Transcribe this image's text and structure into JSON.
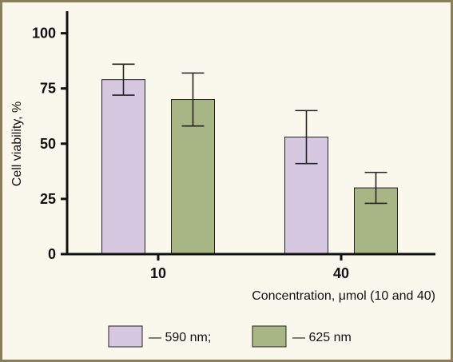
{
  "chart_data": {
    "type": "bar",
    "categories": [
      "10",
      "40"
    ],
    "series": [
      {
        "name": "— 590 nm;",
        "values": [
          79,
          53
        ],
        "error": [
          7,
          12
        ],
        "color": "#d6c8e0"
      },
      {
        "name": "— 625 nm",
        "values": [
          70,
          30
        ],
        "error": [
          12,
          7
        ],
        "color": "#a8b585"
      }
    ],
    "title": "",
    "xlabel": "Concentration, μmol (10 and 40)",
    "ylabel": "Cell viability, %",
    "ylim": [
      0,
      110
    ],
    "yticks": [
      0,
      25,
      50,
      75,
      100
    ],
    "grid": false,
    "legend_position": "bottom"
  }
}
